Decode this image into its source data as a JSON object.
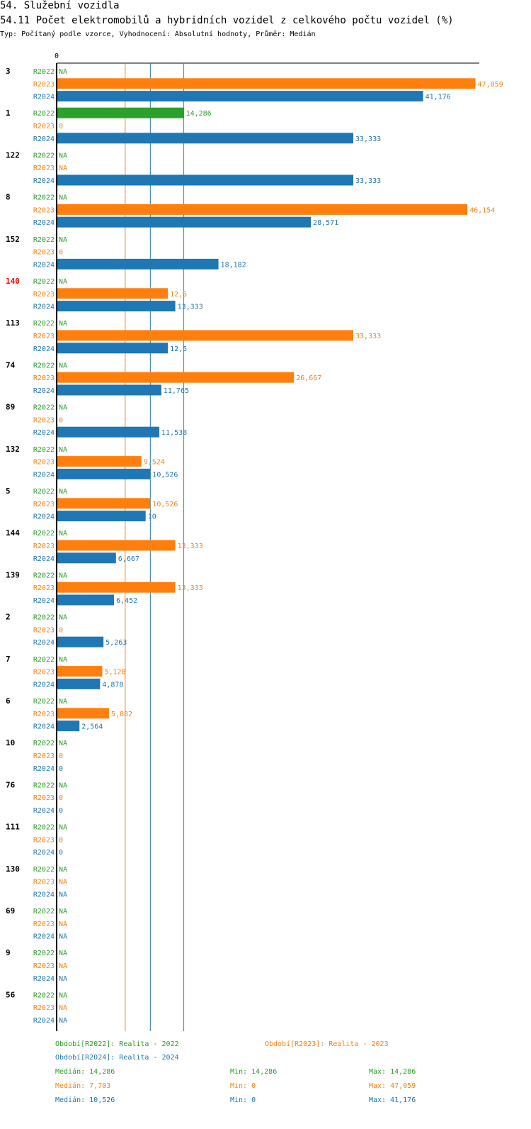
{
  "header": {
    "title": "54. Služební vozidla",
    "subtitle": "54.11 Počet elektromobilů a hybridních vozidel z celkového počtu vozidel (%)",
    "type_line": "Typ: Počítaný podle vzorce, Vyhodnocení: Absolutní hodnoty, Průměr: Medián"
  },
  "colors": {
    "R2022": "#2ca02c",
    "R2023": "#ff7f0e",
    "R2024": "#1f77b4",
    "highlight": "#ff0000"
  },
  "chart_data": {
    "type": "bar",
    "orientation": "horizontal",
    "x_axis_origin_label": "0",
    "series_names": [
      "R2022",
      "R2023",
      "R2024"
    ],
    "highlight_group": "140",
    "groups": [
      {
        "id": "3",
        "values": [
          {
            "v": null,
            "t": "NA"
          },
          {
            "v": 47.059,
            "t": "47,059"
          },
          {
            "v": 41.176,
            "t": "41,176"
          }
        ]
      },
      {
        "id": "1",
        "values": [
          {
            "v": 14.286,
            "t": "14,286"
          },
          {
            "v": 0,
            "t": "0"
          },
          {
            "v": 33.333,
            "t": "33,333"
          }
        ]
      },
      {
        "id": "122",
        "values": [
          {
            "v": null,
            "t": "NA"
          },
          {
            "v": null,
            "t": "NA"
          },
          {
            "v": 33.333,
            "t": "33,333"
          }
        ]
      },
      {
        "id": "8",
        "values": [
          {
            "v": null,
            "t": "NA"
          },
          {
            "v": 46.154,
            "t": "46,154"
          },
          {
            "v": 28.571,
            "t": "28,571"
          }
        ]
      },
      {
        "id": "152",
        "values": [
          {
            "v": null,
            "t": "NA"
          },
          {
            "v": 0,
            "t": "0"
          },
          {
            "v": 18.182,
            "t": "18,182"
          }
        ]
      },
      {
        "id": "140",
        "values": [
          {
            "v": null,
            "t": "NA"
          },
          {
            "v": 12.5,
            "t": "12,5"
          },
          {
            "v": 13.333,
            "t": "13,333"
          }
        ]
      },
      {
        "id": "113",
        "values": [
          {
            "v": null,
            "t": "NA"
          },
          {
            "v": 33.333,
            "t": "33,333"
          },
          {
            "v": 12.5,
            "t": "12,5"
          }
        ]
      },
      {
        "id": "74",
        "values": [
          {
            "v": null,
            "t": "NA"
          },
          {
            "v": 26.667,
            "t": "26,667"
          },
          {
            "v": 11.765,
            "t": "11,765"
          }
        ]
      },
      {
        "id": "89",
        "values": [
          {
            "v": null,
            "t": "NA"
          },
          {
            "v": 0,
            "t": "0"
          },
          {
            "v": 11.538,
            "t": "11,538"
          }
        ]
      },
      {
        "id": "132",
        "values": [
          {
            "v": null,
            "t": "NA"
          },
          {
            "v": 9.524,
            "t": "9,524"
          },
          {
            "v": 10.526,
            "t": "10,526"
          }
        ]
      },
      {
        "id": "5",
        "values": [
          {
            "v": null,
            "t": "NA"
          },
          {
            "v": 10.526,
            "t": "10,526"
          },
          {
            "v": 10,
            "t": "10"
          }
        ]
      },
      {
        "id": "144",
        "values": [
          {
            "v": null,
            "t": "NA"
          },
          {
            "v": 13.333,
            "t": "13,333"
          },
          {
            "v": 6.667,
            "t": "6,667"
          }
        ]
      },
      {
        "id": "139",
        "values": [
          {
            "v": null,
            "t": "NA"
          },
          {
            "v": 13.333,
            "t": "13,333"
          },
          {
            "v": 6.452,
            "t": "6,452"
          }
        ]
      },
      {
        "id": "2",
        "values": [
          {
            "v": null,
            "t": "NA"
          },
          {
            "v": 0,
            "t": "0"
          },
          {
            "v": 5.263,
            "t": "5,263"
          }
        ]
      },
      {
        "id": "7",
        "values": [
          {
            "v": null,
            "t": "NA"
          },
          {
            "v": 5.128,
            "t": "5,128"
          },
          {
            "v": 4.878,
            "t": "4,878"
          }
        ]
      },
      {
        "id": "6",
        "values": [
          {
            "v": null,
            "t": "NA"
          },
          {
            "v": 5.882,
            "t": "5,882"
          },
          {
            "v": 2.564,
            "t": "2,564"
          }
        ]
      },
      {
        "id": "10",
        "values": [
          {
            "v": null,
            "t": "NA"
          },
          {
            "v": 0,
            "t": "0"
          },
          {
            "v": 0,
            "t": "0"
          }
        ]
      },
      {
        "id": "76",
        "values": [
          {
            "v": null,
            "t": "NA"
          },
          {
            "v": 0,
            "t": "0"
          },
          {
            "v": 0,
            "t": "0"
          }
        ]
      },
      {
        "id": "111",
        "values": [
          {
            "v": null,
            "t": "NA"
          },
          {
            "v": 0,
            "t": "0"
          },
          {
            "v": 0,
            "t": "0"
          }
        ]
      },
      {
        "id": "130",
        "values": [
          {
            "v": null,
            "t": "NA"
          },
          {
            "v": null,
            "t": "NA"
          },
          {
            "v": null,
            "t": "NA"
          }
        ]
      },
      {
        "id": "69",
        "values": [
          {
            "v": null,
            "t": "NA"
          },
          {
            "v": null,
            "t": "NA"
          },
          {
            "v": null,
            "t": "NA"
          }
        ]
      },
      {
        "id": "9",
        "values": [
          {
            "v": null,
            "t": "NA"
          },
          {
            "v": null,
            "t": "NA"
          },
          {
            "v": null,
            "t": "NA"
          }
        ]
      },
      {
        "id": "56",
        "values": [
          {
            "v": null,
            "t": "NA"
          },
          {
            "v": null,
            "t": "NA"
          },
          {
            "v": null,
            "t": "NA"
          }
        ]
      }
    ],
    "reference_lines": [
      {
        "series": "R2023",
        "value": 7.703,
        "label": "Medián"
      },
      {
        "series": "R2024",
        "value": 10.526,
        "label": "Medián"
      },
      {
        "series": "R2022",
        "value": 14.286,
        "label": "Medián"
      }
    ],
    "legend": [
      {
        "series": "R2022",
        "text": "Období[R2022]: Realita - 2022"
      },
      {
        "series": "R2023",
        "text": "Období[R2023]: Realita - 2023"
      },
      {
        "series": "R2024",
        "text": "Období[R2024]: Realita - 2024"
      }
    ],
    "stats": [
      {
        "series": "R2022",
        "median": "Medián: 14,286",
        "min": "Min: 14,286",
        "max": "Max: 14,286"
      },
      {
        "series": "R2023",
        "median": "Medián: 7,703",
        "min": "Min: 0",
        "max": "Max: 47,059"
      },
      {
        "series": "R2024",
        "median": "Medián: 10,526",
        "min": "Min: 0",
        "max": "Max: 41,176"
      }
    ]
  }
}
